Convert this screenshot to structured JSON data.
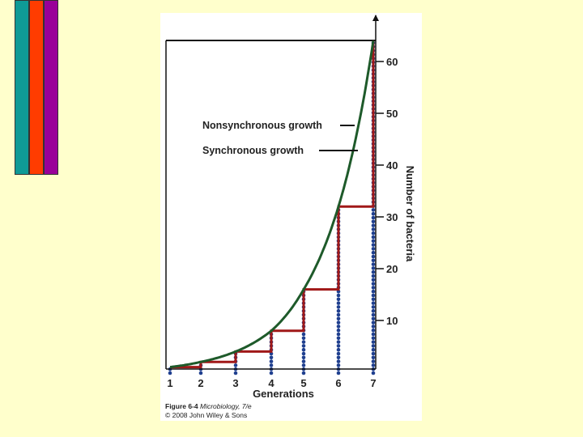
{
  "slide": {
    "background": "#ffffcc",
    "accent_bars": [
      {
        "name": "teal",
        "color": "#0f9a96"
      },
      {
        "name": "orange",
        "color": "#ff3c00"
      },
      {
        "name": "purple",
        "color": "#990099"
      }
    ]
  },
  "figure": {
    "caption_title": "Figure 6-4",
    "caption_book": "Microbiology, 7/e",
    "copyright": "© 2008 John Wiley & Sons"
  },
  "chart_data": {
    "type": "line",
    "title": "",
    "xlabel": "Generations",
    "ylabel": "Number of bacteria",
    "x_ticks": [
      "1",
      "2",
      "3",
      "4",
      "5",
      "6",
      "7"
    ],
    "y_ticks": [
      "10",
      "20",
      "30",
      "40",
      "50",
      "60"
    ],
    "xlim": [
      1,
      7
    ],
    "ylim": [
      0,
      64
    ],
    "y_axis_side": "right",
    "grid": false,
    "series": [
      {
        "name": "Nonsynchronous growth",
        "style": "smooth curve",
        "color": "#1e5a2a",
        "x": [
          1,
          2,
          3,
          4,
          5,
          6,
          7
        ],
        "y": [
          1,
          2,
          4,
          8,
          16,
          32,
          64
        ]
      },
      {
        "name": "Synchronous growth",
        "style": "step",
        "color": "#a01818",
        "x": [
          1,
          2,
          3,
          4,
          5,
          6,
          7
        ],
        "y": [
          1,
          2,
          4,
          8,
          16,
          32,
          64
        ]
      }
    ],
    "dotted_columns": {
      "color": "#1f3f8f",
      "x": [
        1,
        2,
        3,
        4,
        5,
        6,
        7
      ],
      "heights": [
        1,
        2,
        4,
        8,
        16,
        32,
        64
      ]
    }
  }
}
